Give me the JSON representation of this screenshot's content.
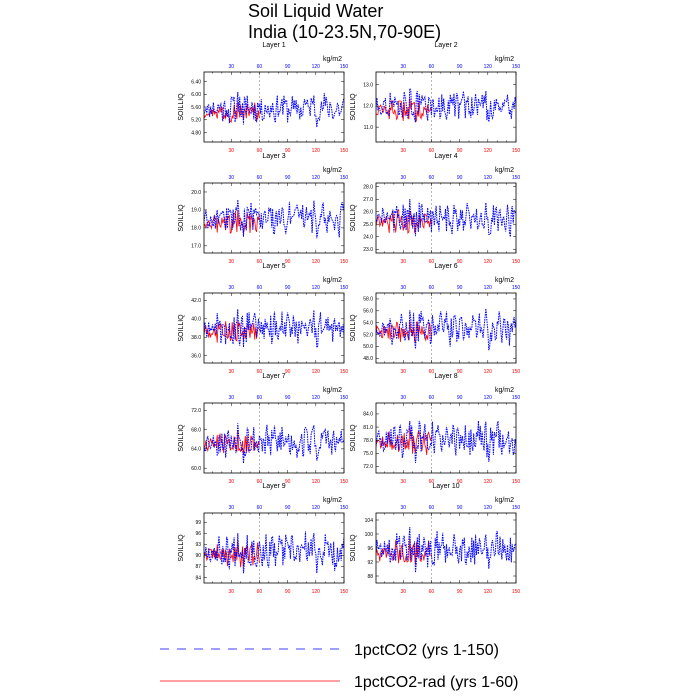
{
  "figure": {
    "title_line1": "Soil Liquid Water",
    "title_line2": "India (10-23.5N,70-90E)"
  },
  "colors": {
    "series_1pctCO2": "#0000ff",
    "series_1pctCO2_rad": "#ff0000",
    "top_ticks": "#0000ff",
    "bottom_ticks": "#ff0000",
    "refline": "#888888"
  },
  "legend": [
    {
      "label": "1pctCO2 (yrs 1-150)",
      "color": "#0000ff",
      "style": "dashed"
    },
    {
      "label": "1pctCO2-rad (yrs 1-60)",
      "color": "#ff0000",
      "style": "solid"
    }
  ],
  "chart_data": [
    {
      "type": "line",
      "title": "Layer 1",
      "ylabel": "SOILLIQ",
      "unit": "kg/m2",
      "xlim": [
        1,
        150
      ],
      "x_ticks": [
        30,
        60,
        90,
        120,
        150
      ],
      "vertical_reference_x": 60,
      "ylim": [
        4.5,
        6.7
      ],
      "y_ticks": [
        "6.40",
        "6.00",
        "5.60",
        "5.20",
        "4.80"
      ],
      "series": [
        {
          "name": "1pctCO2 (yrs 1-150)",
          "x_range": [
            1,
            150
          ],
          "mean": 5.55,
          "amplitude": 0.45
        },
        {
          "name": "1pctCO2-rad (yrs 1-60)",
          "x_range": [
            1,
            60
          ],
          "mean": 5.45,
          "amplitude": 0.3
        }
      ]
    },
    {
      "type": "line",
      "title": "Layer 2",
      "ylabel": "SOILLIQ",
      "unit": "kg/m2",
      "xlim": [
        1,
        150
      ],
      "x_ticks": [
        30,
        60,
        90,
        120,
        150
      ],
      "vertical_reference_x": 60,
      "ylim": [
        10.3,
        13.6
      ],
      "y_ticks": [
        "13.0",
        "12.0",
        "11.0"
      ],
      "series": [
        {
          "name": "1pctCO2 (yrs 1-150)",
          "x_range": [
            1,
            150
          ],
          "mean": 12.0,
          "amplitude": 0.7
        },
        {
          "name": "1pctCO2-rad (yrs 1-60)",
          "x_range": [
            1,
            60
          ],
          "mean": 11.8,
          "amplitude": 0.5
        }
      ]
    },
    {
      "type": "line",
      "title": "Layer 3",
      "ylabel": "SOILLIQ",
      "unit": "kg/m2",
      "xlim": [
        1,
        150
      ],
      "x_ticks": [
        30,
        60,
        90,
        120,
        150
      ],
      "vertical_reference_x": 60,
      "ylim": [
        16.6,
        20.5
      ],
      "y_ticks": [
        "20.0",
        "19.0",
        "18.0",
        "17.0"
      ],
      "series": [
        {
          "name": "1pctCO2 (yrs 1-150)",
          "x_range": [
            1,
            150
          ],
          "mean": 18.5,
          "amplitude": 0.9
        },
        {
          "name": "1pctCO2-rad (yrs 1-60)",
          "x_range": [
            1,
            60
          ],
          "mean": 18.3,
          "amplitude": 0.6
        }
      ]
    },
    {
      "type": "line",
      "title": "Layer 4",
      "ylabel": "SOILLIQ",
      "unit": "kg/m2",
      "xlim": [
        1,
        150
      ],
      "x_ticks": [
        30,
        60,
        90,
        120,
        150
      ],
      "vertical_reference_x": 60,
      "ylim": [
        22.7,
        28.3
      ],
      "y_ticks": [
        "28.0",
        "27.0",
        "26.0",
        "25.0",
        "24.0",
        "23.0"
      ],
      "series": [
        {
          "name": "1pctCO2 (yrs 1-150)",
          "x_range": [
            1,
            150
          ],
          "mean": 25.5,
          "amplitude": 1.3
        },
        {
          "name": "1pctCO2-rad (yrs 1-60)",
          "x_range": [
            1,
            60
          ],
          "mean": 25.2,
          "amplitude": 0.9
        }
      ]
    },
    {
      "type": "line",
      "title": "Layer 5",
      "ylabel": "SOILLIQ",
      "unit": "kg/m2",
      "xlim": [
        1,
        150
      ],
      "x_ticks": [
        30,
        60,
        90,
        120,
        150
      ],
      "vertical_reference_x": 60,
      "ylim": [
        35.2,
        42.8
      ],
      "y_ticks": [
        "42.0",
        "40.0",
        "38.0",
        "36.0"
      ],
      "series": [
        {
          "name": "1pctCO2 (yrs 1-150)",
          "x_range": [
            1,
            150
          ],
          "mean": 39.0,
          "amplitude": 1.8
        },
        {
          "name": "1pctCO2-rad (yrs 1-60)",
          "x_range": [
            1,
            60
          ],
          "mean": 38.6,
          "amplitude": 1.2
        }
      ]
    },
    {
      "type": "line",
      "title": "Layer 6",
      "ylabel": "SOILLIQ",
      "unit": "kg/m2",
      "xlim": [
        1,
        150
      ],
      "x_ticks": [
        30,
        60,
        90,
        120,
        150
      ],
      "vertical_reference_x": 60,
      "ylim": [
        47.2,
        59.0
      ],
      "y_ticks": [
        "58.0",
        "56.0",
        "54.0",
        "52.0",
        "50.0",
        "48.0"
      ],
      "series": [
        {
          "name": "1pctCO2 (yrs 1-150)",
          "x_range": [
            1,
            150
          ],
          "mean": 53.0,
          "amplitude": 2.8
        },
        {
          "name": "1pctCO2-rad (yrs 1-60)",
          "x_range": [
            1,
            60
          ],
          "mean": 52.4,
          "amplitude": 1.8
        }
      ]
    },
    {
      "type": "line",
      "title": "Layer 7",
      "ylabel": "SOILLIQ",
      "unit": "kg/m2",
      "xlim": [
        1,
        150
      ],
      "x_ticks": [
        30,
        60,
        90,
        120,
        150
      ],
      "vertical_reference_x": 60,
      "ylim": [
        59.0,
        73.5
      ],
      "y_ticks": [
        "72.0",
        "68.0",
        "64.0",
        "60.0"
      ],
      "series": [
        {
          "name": "1pctCO2 (yrs 1-150)",
          "x_range": [
            1,
            150
          ],
          "mean": 65.5,
          "amplitude": 3.5
        },
        {
          "name": "1pctCO2-rad (yrs 1-60)",
          "x_range": [
            1,
            60
          ],
          "mean": 65.0,
          "amplitude": 2.4
        }
      ]
    },
    {
      "type": "line",
      "title": "Layer 8",
      "ylabel": "SOILLIQ",
      "unit": "kg/m2",
      "xlim": [
        1,
        150
      ],
      "x_ticks": [
        30,
        60,
        90,
        120,
        150
      ],
      "vertical_reference_x": 60,
      "ylim": [
        70.5,
        86.5
      ],
      "y_ticks": [
        "84.0",
        "81.0",
        "78.0",
        "75.0",
        "72.0"
      ],
      "series": [
        {
          "name": "1pctCO2 (yrs 1-150)",
          "x_range": [
            1,
            150
          ],
          "mean": 78.0,
          "amplitude": 4.0
        },
        {
          "name": "1pctCO2-rad (yrs 1-60)",
          "x_range": [
            1,
            60
          ],
          "mean": 77.5,
          "amplitude": 3.0
        }
      ]
    },
    {
      "type": "line",
      "title": "Layer 9",
      "ylabel": "SOILLIQ",
      "unit": "kg/m2",
      "xlim": [
        1,
        150
      ],
      "x_ticks": [
        30,
        60,
        90,
        120,
        150
      ],
      "vertical_reference_x": 60,
      "ylim": [
        82.5,
        101.5
      ],
      "y_ticks": [
        "99",
        "96",
        "93",
        "90",
        "87",
        "84"
      ],
      "series": [
        {
          "name": "1pctCO2 (yrs 1-150)",
          "x_range": [
            1,
            150
          ],
          "mean": 91.0,
          "amplitude": 4.5
        },
        {
          "name": "1pctCO2-rad (yrs 1-60)",
          "x_range": [
            1,
            60
          ],
          "mean": 90.2,
          "amplitude": 3.2
        }
      ]
    },
    {
      "type": "line",
      "title": "Layer 10",
      "ylabel": "SOILLIQ",
      "unit": "kg/m2",
      "xlim": [
        1,
        150
      ],
      "x_ticks": [
        30,
        60,
        90,
        120,
        150
      ],
      "vertical_reference_x": 60,
      "ylim": [
        86.0,
        106.0
      ],
      "y_ticks": [
        "104",
        "100",
        "96",
        "92",
        "88"
      ],
      "series": [
        {
          "name": "1pctCO2 (yrs 1-150)",
          "x_range": [
            1,
            150
          ],
          "mean": 95.5,
          "amplitude": 5.0
        },
        {
          "name": "1pctCO2-rad (yrs 1-60)",
          "x_range": [
            1,
            60
          ],
          "mean": 94.5,
          "amplitude": 3.5
        }
      ]
    }
  ]
}
